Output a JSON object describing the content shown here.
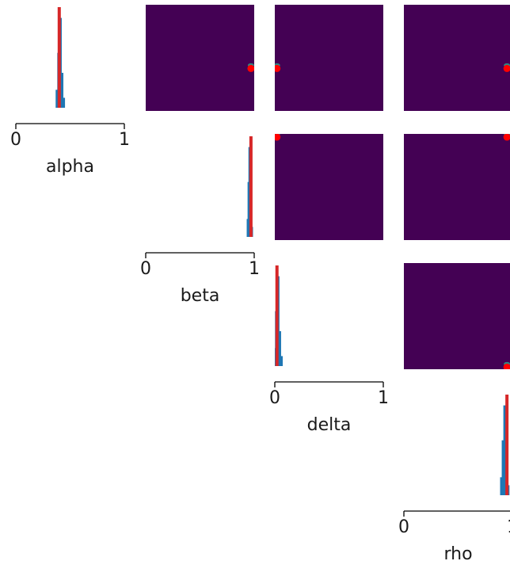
{
  "figure": {
    "colors": {
      "density_fill": "#440154",
      "hist_main": "#1f77b4",
      "hist_truth": "#d62728",
      "marker": "#ff0000",
      "faint_marker": "#2ca58d",
      "axis": "#000000",
      "text": "#1a1a1a"
    },
    "parameters": [
      "alpha",
      "beta",
      "delta",
      "rho"
    ]
  },
  "chart_data": {
    "type": "pairplot",
    "variables": [
      "alpha",
      "beta",
      "delta",
      "rho"
    ],
    "axis_range": [
      0,
      1
    ],
    "ticks": [
      0,
      1
    ],
    "tick_labels": [
      "0",
      "1"
    ],
    "grid": false,
    "diagonal": [
      {
        "variable": "alpha",
        "type": "histogram",
        "blue_center": 0.41,
        "blue_spread": 0.015,
        "red_center": 0.4
      },
      {
        "variable": "beta",
        "type": "histogram",
        "blue_center": 0.96,
        "blue_spread": 0.008,
        "red_center": 0.97
      },
      {
        "variable": "delta",
        "type": "histogram",
        "blue_center": 0.03,
        "blue_spread": 0.015,
        "red_center": 0.02
      },
      {
        "variable": "rho",
        "type": "histogram",
        "blue_center": 0.93,
        "blue_spread": 0.015,
        "red_center": 0.95
      }
    ],
    "off_diagonal": [
      {
        "row": "alpha",
        "col": "beta",
        "type": "density",
        "marker": [
          0.97,
          0.4
        ]
      },
      {
        "row": "alpha",
        "col": "delta",
        "type": "density",
        "marker": [
          0.02,
          0.4
        ]
      },
      {
        "row": "alpha",
        "col": "rho",
        "type": "density",
        "marker": [
          0.95,
          0.4
        ]
      },
      {
        "row": "beta",
        "col": "delta",
        "type": "density",
        "marker": [
          0.02,
          0.97
        ]
      },
      {
        "row": "beta",
        "col": "rho",
        "type": "density",
        "marker": [
          0.95,
          0.97
        ]
      },
      {
        "row": "delta",
        "col": "rho",
        "type": "density",
        "marker": [
          0.95,
          0.02
        ]
      }
    ]
  }
}
